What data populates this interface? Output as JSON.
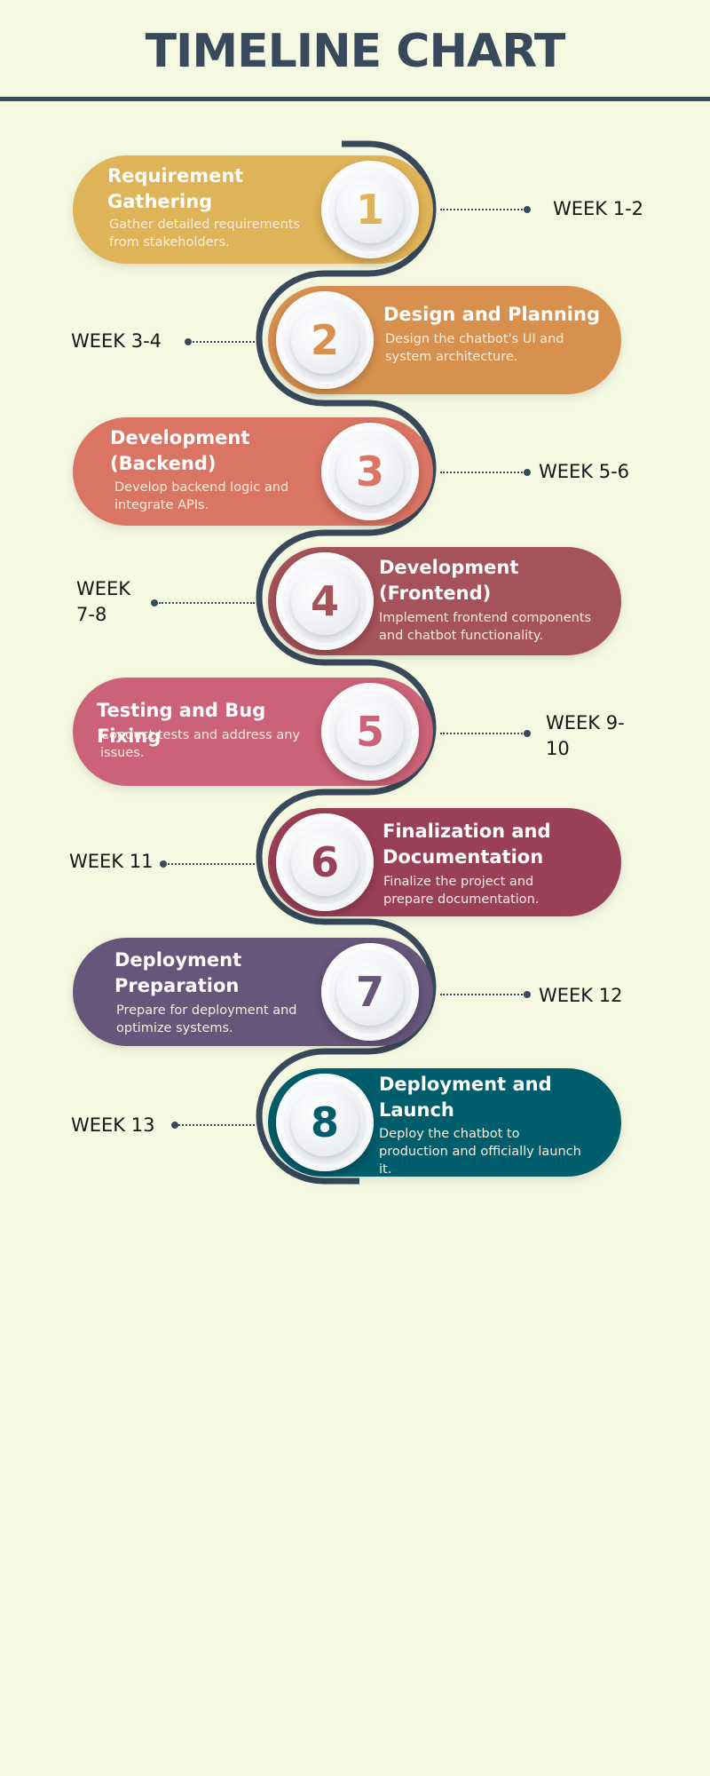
{
  "title": "TIMELINE CHART",
  "colors": {
    "line": "#37495a",
    "background": "#f5f9e2"
  },
  "steps": [
    {
      "number": "1",
      "title": "Requirement Gathering",
      "description": "Gather detailed requirements from stakeholders.",
      "week": "WEEK 1-2",
      "color": "#dfb357"
    },
    {
      "number": "2",
      "title": "Design and Planning",
      "description": "Design the chatbot's UI and system architecture.",
      "week": "WEEK 3-4",
      "color": "#d8904f"
    },
    {
      "number": "3",
      "title": "Development (Backend)",
      "description": "Develop backend logic and integrate APIs.",
      "week": "WEEK 5-6",
      "color": "#da7564"
    },
    {
      "number": "4",
      "title": "Development (Frontend)",
      "description": "Implement frontend components and chatbot functionality.",
      "week": "WEEK 7-8",
      "color": "#a6525a"
    },
    {
      "number": "5",
      "title": "Testing and Bug Fixing",
      "description": "Conduct tests and address any issues.",
      "week": "WEEK 9-10",
      "color": "#cc6277"
    },
    {
      "number": "6",
      "title": "Finalization and Documentation",
      "description": "Finalize the project and prepare documentation.",
      "week": "WEEK 11",
      "color": "#9a3f58"
    },
    {
      "number": "7",
      "title": "Deployment Preparation",
      "description": "Prepare for deployment and optimize systems.",
      "week": "WEEK 12",
      "color": "#67557a"
    },
    {
      "number": "8",
      "title": "Deployment and Launch",
      "description": "Deploy the chatbot to production and officially launch it.",
      "week": "WEEK 13",
      "color": "#005d6b"
    }
  ]
}
